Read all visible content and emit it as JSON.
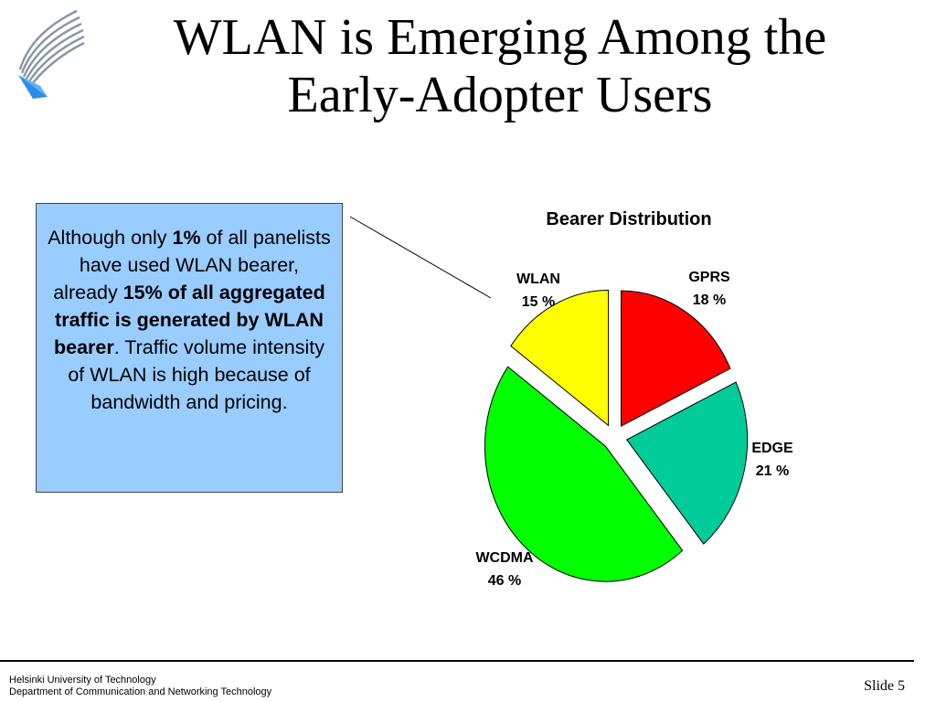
{
  "slide": {
    "title_line1": "WLAN is Emerging Among the",
    "title_line2": "Early-Adopter Users",
    "callout": {
      "p1": "Although only ",
      "b1": "1%",
      "p2": " of all panelists have used WLAN bearer, already ",
      "b2": "15% of all aggregated traffic is generated by WLAN bearer",
      "p3": ". Traffic volume intensity of WLAN is high because of bandwidth and pricing."
    },
    "footer": {
      "university": "Helsinki University of Technology",
      "department": "Department of Communication and Networking Technology",
      "slide_number": "Slide 5"
    },
    "logo_icon": "university-logo-icon"
  },
  "chart_data": {
    "type": "pie",
    "title": "Bearer Distribution",
    "slices": [
      {
        "name": "GPRS",
        "value": 18,
        "value_label": "18 %",
        "color": "#ff0000"
      },
      {
        "name": "EDGE",
        "value": 21,
        "value_label": "21 %",
        "color": "#00cc99"
      },
      {
        "name": "WCDMA",
        "value": 46,
        "value_label": "46 %",
        "color": "#00ff00"
      },
      {
        "name": "WLAN",
        "value": 15,
        "value_label": "15 %",
        "color": "#ffff00"
      }
    ],
    "exploded": true,
    "start_angle_deg": 0,
    "direction": "clockwise"
  }
}
